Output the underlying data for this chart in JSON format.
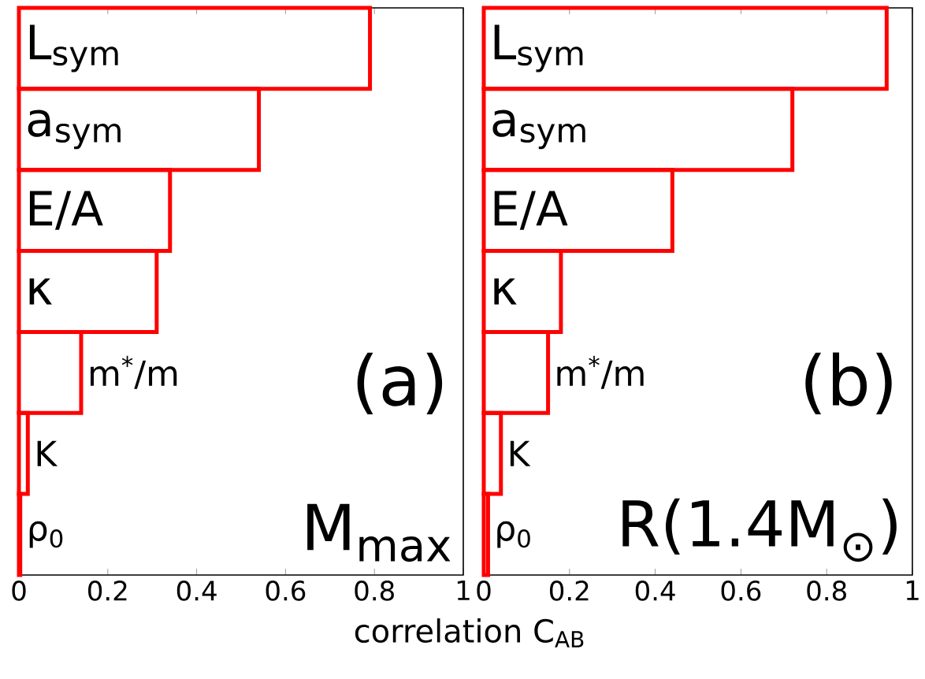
{
  "chart_data": [
    {
      "type": "bar",
      "orientation": "horizontal",
      "xlabel": "correlation C$_{AB}$",
      "categories": [
        "L$_{sym}$",
        "a$_{sym}$",
        "E/A",
        "κ",
        "m$^{*}$/m",
        "K",
        "ρ$_{0}$"
      ],
      "values": [
        0.79,
        0.54,
        0.34,
        0.31,
        0.14,
        0.02,
        0.003
      ],
      "color": "#ff0000",
      "xlim": [
        0,
        1
      ],
      "xticks": [
        0,
        0.2,
        0.4,
        0.6,
        0.8,
        1
      ],
      "annotations": [
        "(a)",
        "M$_{max}$"
      ]
    },
    {
      "type": "bar",
      "orientation": "horizontal",
      "categories": [
        "L$_{sym}$",
        "a$_{sym}$",
        "E/A",
        "κ",
        "m$^{*}$/m",
        "K",
        "ρ$_{0}$"
      ],
      "values": [
        0.94,
        0.72,
        0.44,
        0.18,
        0.15,
        0.04,
        0.01
      ],
      "color": "#ff0000",
      "xlim": [
        0,
        1
      ],
      "xticks": [
        0,
        0.2,
        0.4,
        0.6,
        0.8,
        1
      ],
      "annotations": [
        "(b)",
        "R(1.4M$_{⊙}$)"
      ]
    }
  ]
}
